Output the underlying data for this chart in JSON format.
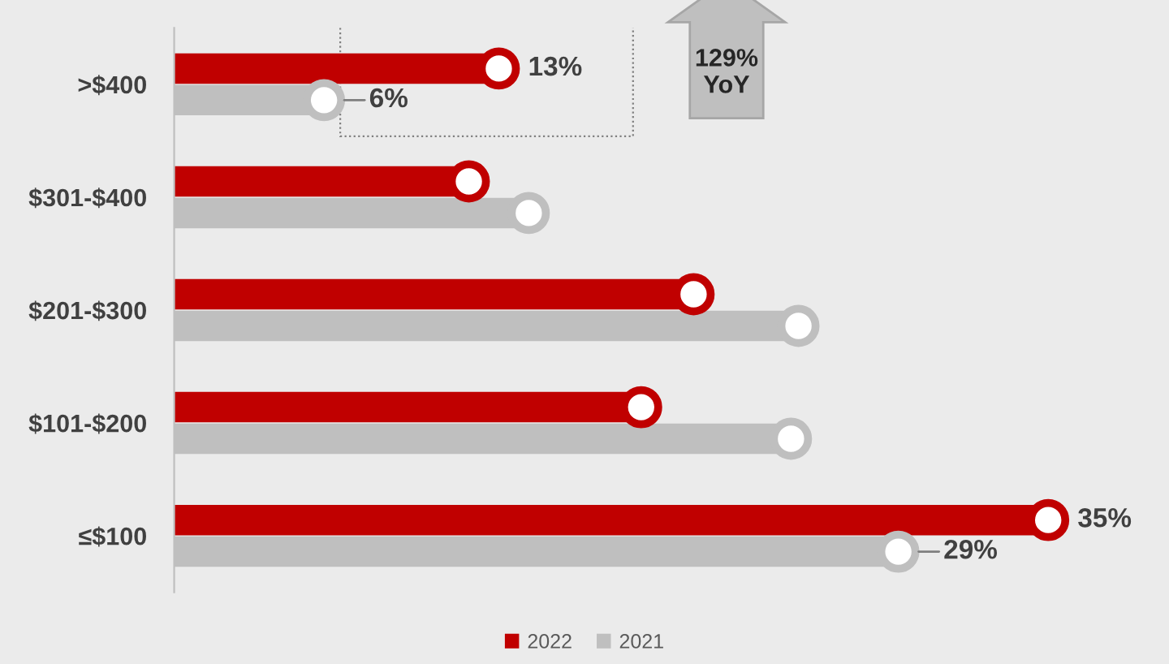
{
  "chart_data": {
    "type": "lollipop",
    "orientation": "horizontal",
    "marker": "circle",
    "legend": "bottom",
    "grid": false,
    "categories": [
      ">$400",
      "$301-$400",
      "$201-$300",
      "$101-$200",
      "≤$100"
    ],
    "series": [
      {
        "name": "2022",
        "color": "#c00000",
        "values": [
          13,
          11.8,
          20.8,
          18.7,
          35
        ],
        "value_labels": [
          "13%",
          null,
          null,
          null,
          "35%"
        ]
      },
      {
        "name": "2021",
        "color": "#bfbfbf",
        "values": [
          6,
          14.2,
          25.0,
          24.7,
          29
        ],
        "value_labels": [
          "6%",
          null,
          null,
          null,
          "29%"
        ]
      }
    ],
    "annotations": [
      "129%\nYoY"
    ]
  }
}
